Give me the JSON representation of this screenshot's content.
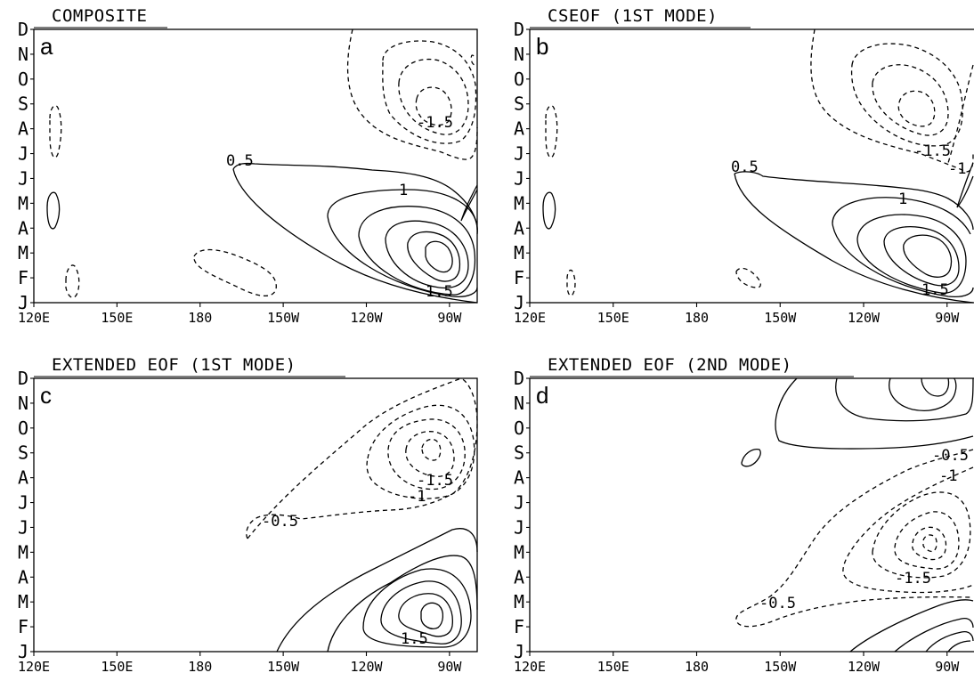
{
  "chart_data": [
    {
      "type": "contour",
      "letter": "a",
      "title": "COMPOSITE",
      "y_ticks": [
        "J",
        "F",
        "M",
        "A",
        "M",
        "J",
        "J",
        "A",
        "S",
        "O",
        "N",
        "D"
      ],
      "x_ticks": [
        "120E",
        "150E",
        "180",
        "150W",
        "120W",
        "90W"
      ],
      "x_values_deg_e": [
        120,
        150,
        180,
        210,
        240,
        270
      ],
      "contour_labels": [
        "0.5",
        "1",
        "1.5",
        "-1.5"
      ]
    },
    {
      "type": "contour",
      "letter": "b",
      "title": "CSEOF (1ST MODE)",
      "y_ticks": [
        "J",
        "F",
        "M",
        "A",
        "M",
        "J",
        "J",
        "A",
        "S",
        "O",
        "N",
        "D"
      ],
      "x_ticks": [
        "120E",
        "150E",
        "180",
        "150W",
        "120W",
        "90W"
      ],
      "x_values_deg_e": [
        120,
        150,
        180,
        210,
        240,
        270
      ],
      "contour_labels": [
        "0.5",
        "1",
        "1.5",
        "-1.5",
        "-1"
      ]
    },
    {
      "type": "contour",
      "letter": "c",
      "title": "EXTENDED EOF (1ST MODE)",
      "y_ticks": [
        "J",
        "F",
        "M",
        "A",
        "M",
        "J",
        "J",
        "A",
        "S",
        "O",
        "N",
        "D"
      ],
      "x_ticks": [
        "120E",
        "150E",
        "180",
        "150W",
        "120W",
        "90W"
      ],
      "x_values_deg_e": [
        120,
        150,
        180,
        210,
        240,
        270
      ],
      "contour_labels": [
        "-0.5",
        "-1",
        "-1.5",
        "1.5"
      ]
    },
    {
      "type": "contour",
      "letter": "d",
      "title": "EXTENDED EOF (2ND MODE)",
      "y_ticks": [
        "J",
        "F",
        "M",
        "A",
        "M",
        "J",
        "J",
        "A",
        "S",
        "O",
        "N",
        "D"
      ],
      "x_ticks": [
        "120E",
        "150E",
        "180",
        "150W",
        "120W",
        "90W"
      ],
      "x_values_deg_e": [
        120,
        150,
        180,
        210,
        240,
        270
      ],
      "contour_labels": [
        "-0.5",
        "-1",
        "-1.5",
        "-0.5"
      ]
    }
  ]
}
